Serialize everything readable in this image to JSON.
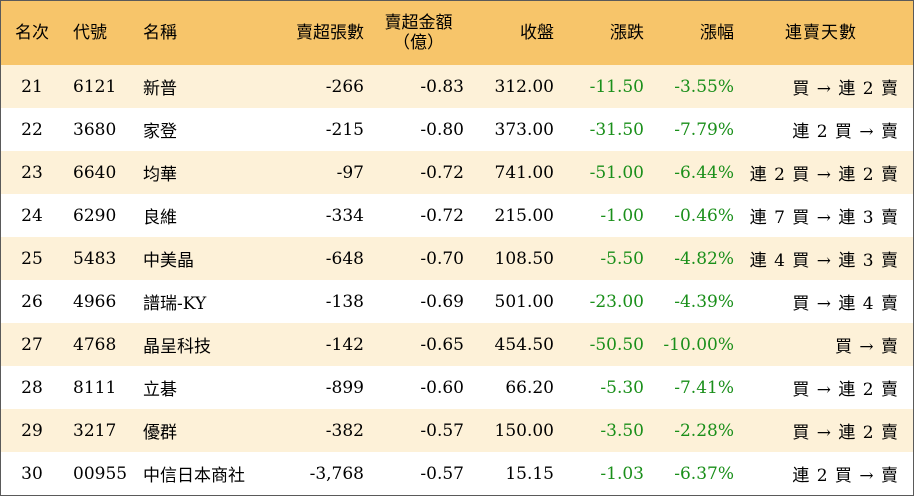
{
  "header": {
    "rank": "名次",
    "code": "代號",
    "name": "名稱",
    "sell_shares": "賣超張數",
    "sell_amount_line1": "賣超金額",
    "sell_amount_line2": "（億）",
    "close": "收盤",
    "change": "漲跌",
    "pct": "漲幅",
    "streak": "連賣天數"
  },
  "colors": {
    "header_bg": "#f7c56a",
    "odd_row_bg": "#fdf1d8",
    "down_green": "#1a8f1a"
  },
  "rows": [
    {
      "rank": "21",
      "code": "6121",
      "name": "新普",
      "shares": "-266",
      "amount": "-0.83",
      "close": "312.00",
      "change": "-11.50",
      "pct": "-3.55%",
      "streak": "買 → 連 2 賣"
    },
    {
      "rank": "22",
      "code": "3680",
      "name": "家登",
      "shares": "-215",
      "amount": "-0.80",
      "close": "373.00",
      "change": "-31.50",
      "pct": "-7.79%",
      "streak": "連 2 買 → 賣"
    },
    {
      "rank": "23",
      "code": "6640",
      "name": "均華",
      "shares": "-97",
      "amount": "-0.72",
      "close": "741.00",
      "change": "-51.00",
      "pct": "-6.44%",
      "streak": "連 2 買 → 連 2 賣"
    },
    {
      "rank": "24",
      "code": "6290",
      "name": "良維",
      "shares": "-334",
      "amount": "-0.72",
      "close": "215.00",
      "change": "-1.00",
      "pct": "-0.46%",
      "streak": "連 7 買 → 連 3 賣"
    },
    {
      "rank": "25",
      "code": "5483",
      "name": "中美晶",
      "shares": "-648",
      "amount": "-0.70",
      "close": "108.50",
      "change": "-5.50",
      "pct": "-4.82%",
      "streak": "連 4 買 → 連 3 賣"
    },
    {
      "rank": "26",
      "code": "4966",
      "name": "譜瑞-KY",
      "shares": "-138",
      "amount": "-0.69",
      "close": "501.00",
      "change": "-23.00",
      "pct": "-4.39%",
      "streak": "買 → 連 4 賣"
    },
    {
      "rank": "27",
      "code": "4768",
      "name": "晶呈科技",
      "shares": "-142",
      "amount": "-0.65",
      "close": "454.50",
      "change": "-50.50",
      "pct": "-10.00%",
      "streak": "買 → 賣"
    },
    {
      "rank": "28",
      "code": "8111",
      "name": "立碁",
      "shares": "-899",
      "amount": "-0.60",
      "close": "66.20",
      "change": "-5.30",
      "pct": "-7.41%",
      "streak": "買 → 連 2 賣"
    },
    {
      "rank": "29",
      "code": "3217",
      "name": "優群",
      "shares": "-382",
      "amount": "-0.57",
      "close": "150.00",
      "change": "-3.50",
      "pct": "-2.28%",
      "streak": "買 → 連 2 賣"
    },
    {
      "rank": "30",
      "code": "00955",
      "name": "中信日本商社",
      "shares": "-3,768",
      "amount": "-0.57",
      "close": "15.15",
      "change": "-1.03",
      "pct": "-6.37%",
      "streak": "連 2 買 → 賣"
    }
  ]
}
